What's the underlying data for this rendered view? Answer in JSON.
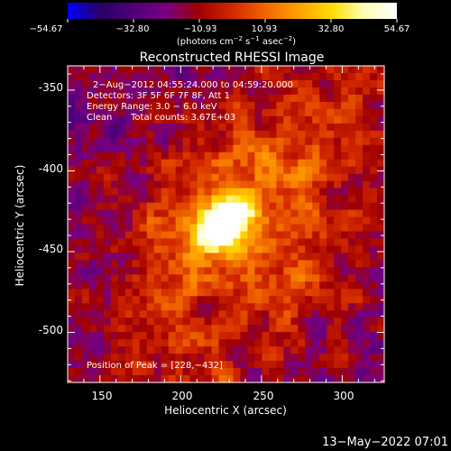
{
  "chart_data": {
    "type": "heatmap",
    "title": "Reconstructed RHESSI Image",
    "xlabel": "Heliocentric X (arcsec)",
    "ylabel": "Heliocentric Y (arcsec)",
    "xlim": [
      130,
      326
    ],
    "ylim": [
      -531,
      -335
    ],
    "x_ticks": [
      150,
      200,
      250,
      300
    ],
    "y_ticks": [
      -350,
      -400,
      -450,
      -500
    ],
    "colorbar": {
      "ticks": [
        -54.67,
        -32.8,
        -10.93,
        10.93,
        32.8,
        54.67
      ],
      "tick_labels": [
        "−54.67",
        "−32.80",
        "−10.93",
        "10.93",
        "32.80",
        "54.67"
      ],
      "range": [
        -54.67,
        54.67
      ],
      "unit_label_parts": [
        "(photons cm",
        "−2",
        " s",
        "−1",
        " asec",
        "−2",
        ")"
      ]
    },
    "annotations": [
      "2−Aug−2012 04:55:24.000 to 04:59:20.000",
      "Detectors: 3F 5F 6F 7F 8F, Att 1",
      "Energy Range: 3.0 − 6.0 keV",
      "Clean",
      "Total counts: 3.67E+03"
    ],
    "peak_label": "Position of Peak = [228,−432]",
    "peak": {
      "x": 228,
      "y": -432,
      "value": 54.67
    },
    "grid": false,
    "colormap": [
      "#0000ff",
      "#280064",
      "#500078",
      "#780080",
      "#a00000",
      "#d22800",
      "#f06400",
      "#ffa000",
      "#ffdc00",
      "#ffffb4",
      "#ffffff"
    ]
  },
  "footer": {
    "date": "13−May−2022 07:01"
  }
}
